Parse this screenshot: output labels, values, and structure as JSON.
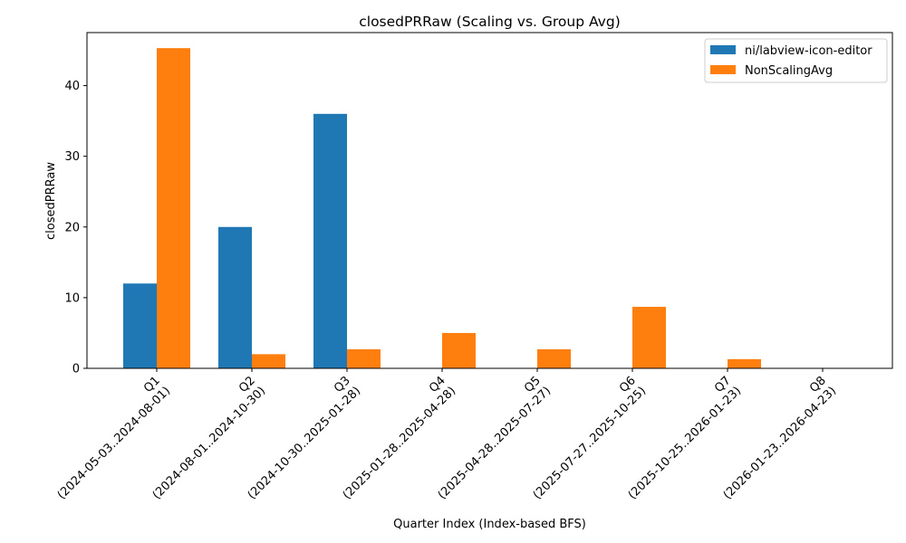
{
  "chart_data": {
    "type": "bar",
    "title": "closedPRRaw (Scaling vs. Group Avg)",
    "xlabel": "Quarter Index (Index-based BFS)",
    "ylabel": "closedPRRaw",
    "categories": [
      {
        "quarter": "Q1",
        "range": "(2024-05-03..2024-08-01)"
      },
      {
        "quarter": "Q2",
        "range": "(2024-08-01..2024-10-30)"
      },
      {
        "quarter": "Q3",
        "range": "(2024-10-30..2025-01-28)"
      },
      {
        "quarter": "Q4",
        "range": "(2025-01-28..2025-04-28)"
      },
      {
        "quarter": "Q5",
        "range": "(2025-04-28..2025-07-27)"
      },
      {
        "quarter": "Q6",
        "range": "(2025-07-27..2025-10-25)"
      },
      {
        "quarter": "Q7",
        "range": "(2025-10-25..2026-01-23)"
      },
      {
        "quarter": "Q8",
        "range": "(2026-01-23..2026-04-23)"
      }
    ],
    "series": [
      {
        "name": "ni/labview-icon-editor",
        "color": "#1f77b4",
        "values": [
          12,
          20,
          36,
          0,
          0,
          0,
          0,
          0
        ]
      },
      {
        "name": "NonScalingAvg",
        "color": "#ff7f0e",
        "values": [
          45.3,
          2.0,
          2.7,
          5.0,
          2.7,
          8.7,
          1.3,
          0
        ]
      }
    ],
    "ylim": [
      0,
      47.5
    ],
    "yticks": [
      0,
      10,
      20,
      30,
      40
    ],
    "legend_position": "top-right",
    "grid": false
  }
}
